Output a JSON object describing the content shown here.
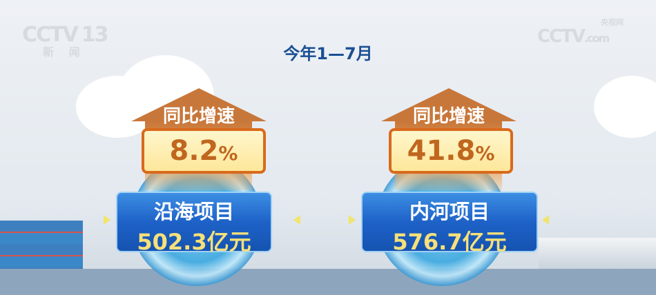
{
  "logo_left": {
    "brand": "CCTV",
    "channel": "13",
    "sub": "新 闻"
  },
  "logo_right": {
    "brand": "CCTV",
    "sub": "央视网",
    "domain": ".com"
  },
  "title": "今年1—7月",
  "cards": [
    {
      "header": "同比增速",
      "growth": "8.2",
      "unit": "%",
      "name": "沿海项目",
      "value": "502.3亿元"
    },
    {
      "header": "同比增速",
      "growth": "41.8",
      "unit": "%",
      "name": "内河项目",
      "value": "576.7亿元"
    }
  ],
  "colors": {
    "title": "#1b4f93",
    "arrow": "#c8773a",
    "banner": "#1e62c8",
    "value": "#f6e07a"
  }
}
